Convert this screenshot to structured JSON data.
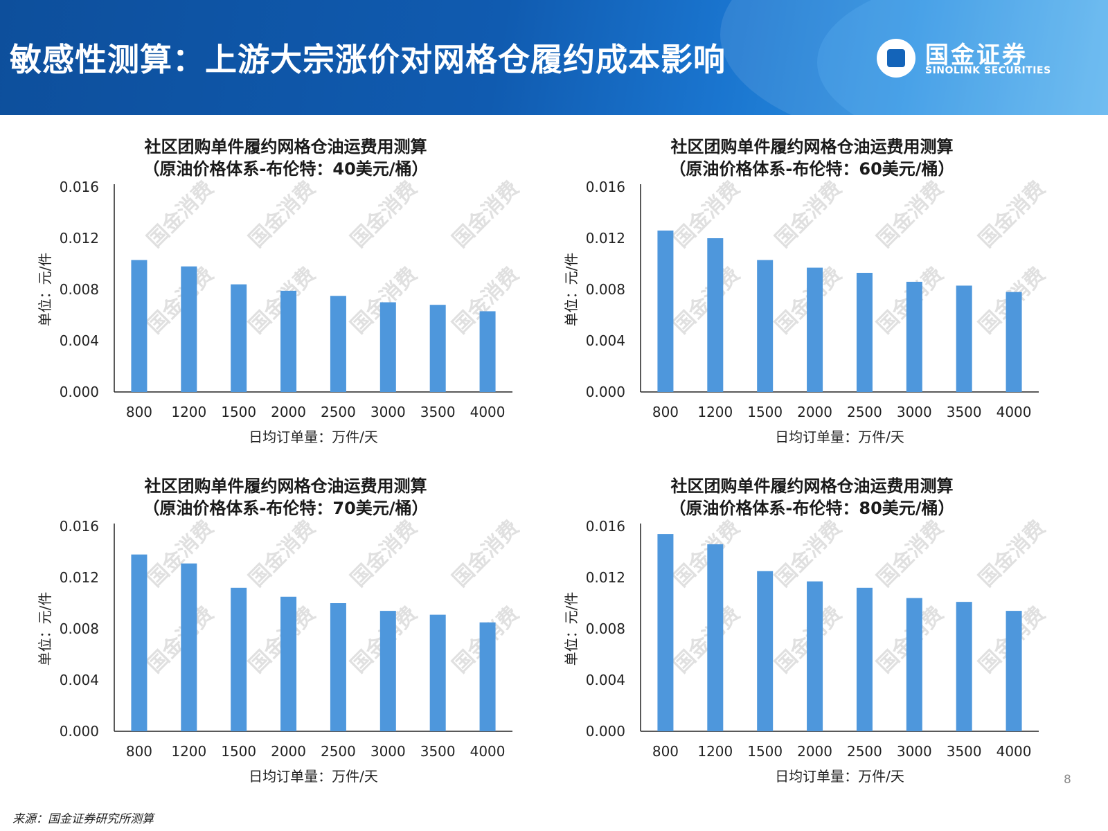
{
  "header": {
    "title": "敏感性测算：上游大宗涨价对网格仓履约成本影响",
    "logo_cn": "国金证券",
    "logo_en": "SINOLINK SECURITIES"
  },
  "watermark_text": "国金消费",
  "source": "来源：国金证券研究所测算",
  "page_number": "8",
  "colors": {
    "bar": "#4e97dc",
    "header": "#105bb0"
  },
  "chart_data": [
    {
      "type": "bar",
      "title_line1": "社区团购单件履约网格仓油运费用测算",
      "title_line2": "（原油价格体系-布伦特：40美元/桶）",
      "xlabel": "日均订单量：万件/天",
      "ylabel": "单位：元/件",
      "categories": [
        "800",
        "1200",
        "1500",
        "2000",
        "2500",
        "3000",
        "3500",
        "4000"
      ],
      "values": [
        0.0103,
        0.0098,
        0.0084,
        0.0079,
        0.0075,
        0.007,
        0.0068,
        0.0063
      ],
      "ylim": [
        0,
        0.016
      ],
      "yticks": [
        "0.000",
        "0.004",
        "0.008",
        "0.012",
        "0.016"
      ]
    },
    {
      "type": "bar",
      "title_line1": "社区团购单件履约网格仓油运费用测算",
      "title_line2": "（原油价格体系-布伦特：60美元/桶）",
      "xlabel": "日均订单量：万件/天",
      "ylabel": "单位：元/件",
      "categories": [
        "800",
        "1200",
        "1500",
        "2000",
        "2500",
        "3000",
        "3500",
        "4000"
      ],
      "values": [
        0.0126,
        0.012,
        0.0103,
        0.0097,
        0.0093,
        0.0086,
        0.0083,
        0.0078
      ],
      "ylim": [
        0,
        0.016
      ],
      "yticks": [
        "0.000",
        "0.004",
        "0.008",
        "0.012",
        "0.016"
      ]
    },
    {
      "type": "bar",
      "title_line1": "社区团购单件履约网格仓油运费用测算",
      "title_line2": "（原油价格体系-布伦特：70美元/桶）",
      "xlabel": "日均订单量：万件/天",
      "ylabel": "单位：元/件",
      "categories": [
        "800",
        "1200",
        "1500",
        "2000",
        "2500",
        "3000",
        "3500",
        "4000"
      ],
      "values": [
        0.0138,
        0.0131,
        0.0112,
        0.0105,
        0.01,
        0.0094,
        0.0091,
        0.0085
      ],
      "ylim": [
        0,
        0.016
      ],
      "yticks": [
        "0.000",
        "0.004",
        "0.008",
        "0.012",
        "0.016"
      ]
    },
    {
      "type": "bar",
      "title_line1": "社区团购单件履约网格仓油运费用测算",
      "title_line2": "（原油价格体系-布伦特：80美元/桶）",
      "xlabel": "日均订单量：万件/天",
      "ylabel": "单位：元/件",
      "categories": [
        "800",
        "1200",
        "1500",
        "2000",
        "2500",
        "3000",
        "3500",
        "4000"
      ],
      "values": [
        0.0154,
        0.0146,
        0.0125,
        0.0117,
        0.0112,
        0.0104,
        0.0101,
        0.0094
      ],
      "ylim": [
        0,
        0.016
      ],
      "yticks": [
        "0.000",
        "0.004",
        "0.008",
        "0.012",
        "0.016"
      ]
    }
  ]
}
